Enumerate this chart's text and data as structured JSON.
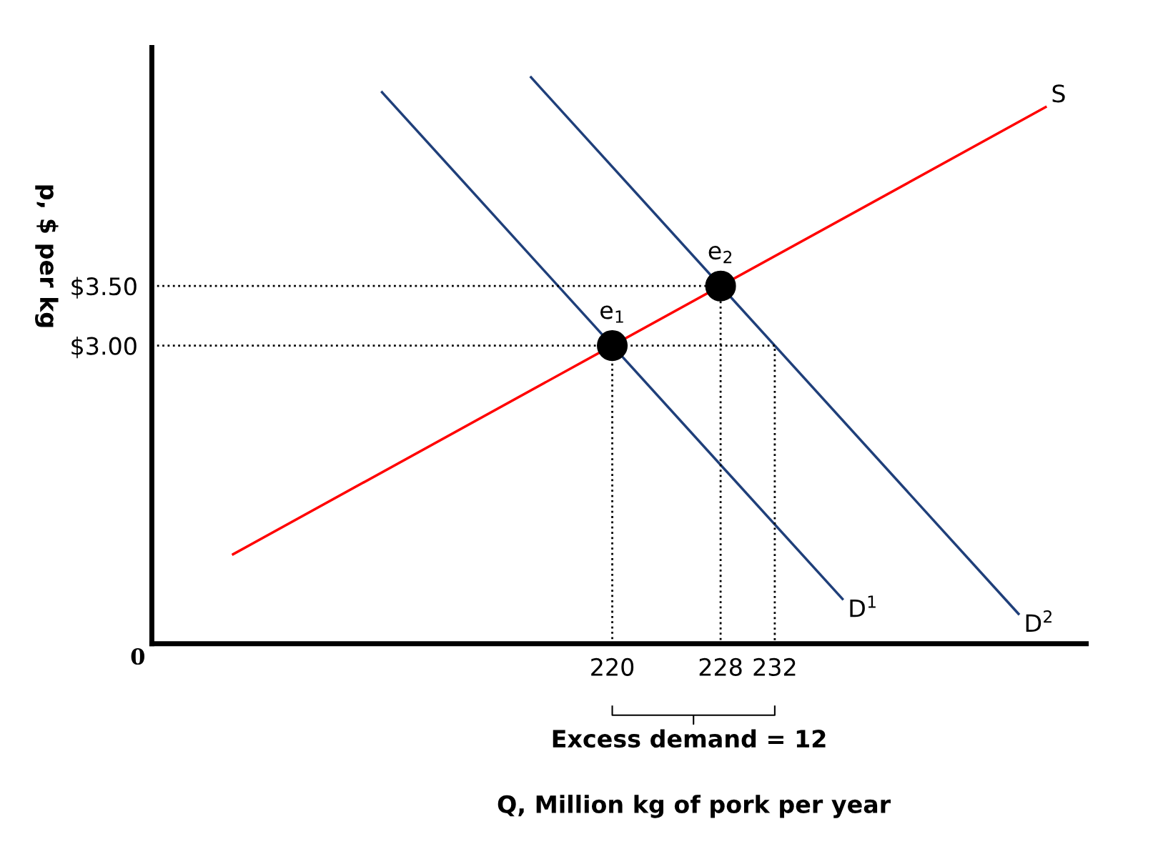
{
  "chart_data": {
    "type": "line",
    "xlabel": "Q, Million kg of pork per year",
    "ylabel": "p, $ per kg",
    "xlim": [
      186,
      255
    ],
    "ylim": [
      0.5,
      5.5
    ],
    "xticks": [
      220,
      228,
      232
    ],
    "yticks": [
      {
        "value": 3.0,
        "label": "$3.00"
      },
      {
        "value": 3.5,
        "label": "$3.50"
      }
    ],
    "grid": false,
    "legend": false,
    "marker": "none",
    "line_style": "solid",
    "series": [
      {
        "name": "S",
        "color": "#ff0000",
        "x": [
          192,
          252
        ],
        "values": [
          1.25,
          5.0
        ]
      },
      {
        "name": "D$^{1}$",
        "color": "#1f3f7a",
        "x": [
          203,
          237
        ],
        "values": [
          5.125,
          0.875
        ]
      },
      {
        "name": "D$^{2}$",
        "color": "#1f3f7a",
        "x": [
          214,
          250
        ],
        "values": [
          5.25,
          0.75
        ]
      },
      {
        "color": "#000000",
        "line_style": "dotted",
        "x": [
          186,
          232,
          232,
          232
        ],
        "values": [
          3.0,
          3.0,
          3.0,
          0.5
        ]
      },
      {
        "color": "#000000",
        "line_style": "dotted",
        "x": [
          186,
          228,
          228
        ],
        "values": [
          3.5,
          3.5,
          0.5
        ]
      },
      {
        "color": "#000000",
        "line_style": "dotted",
        "x": [
          220,
          220
        ],
        "values": [
          2.85,
          0.5
        ]
      },
      {
        "type": "scatter",
        "color": "#000000",
        "marker": "circle",
        "x": [
          220,
          228
        ],
        "values": [
          3.0,
          3.5
        ]
      }
    ],
    "annotations": [
      {
        "text": "e$_{1}$",
        "x": 220,
        "y": 3.0
      },
      {
        "text": "e$_{2}$",
        "x": 228,
        "y": 3.5
      },
      "0",
      "Excess demand = 12"
    ]
  }
}
